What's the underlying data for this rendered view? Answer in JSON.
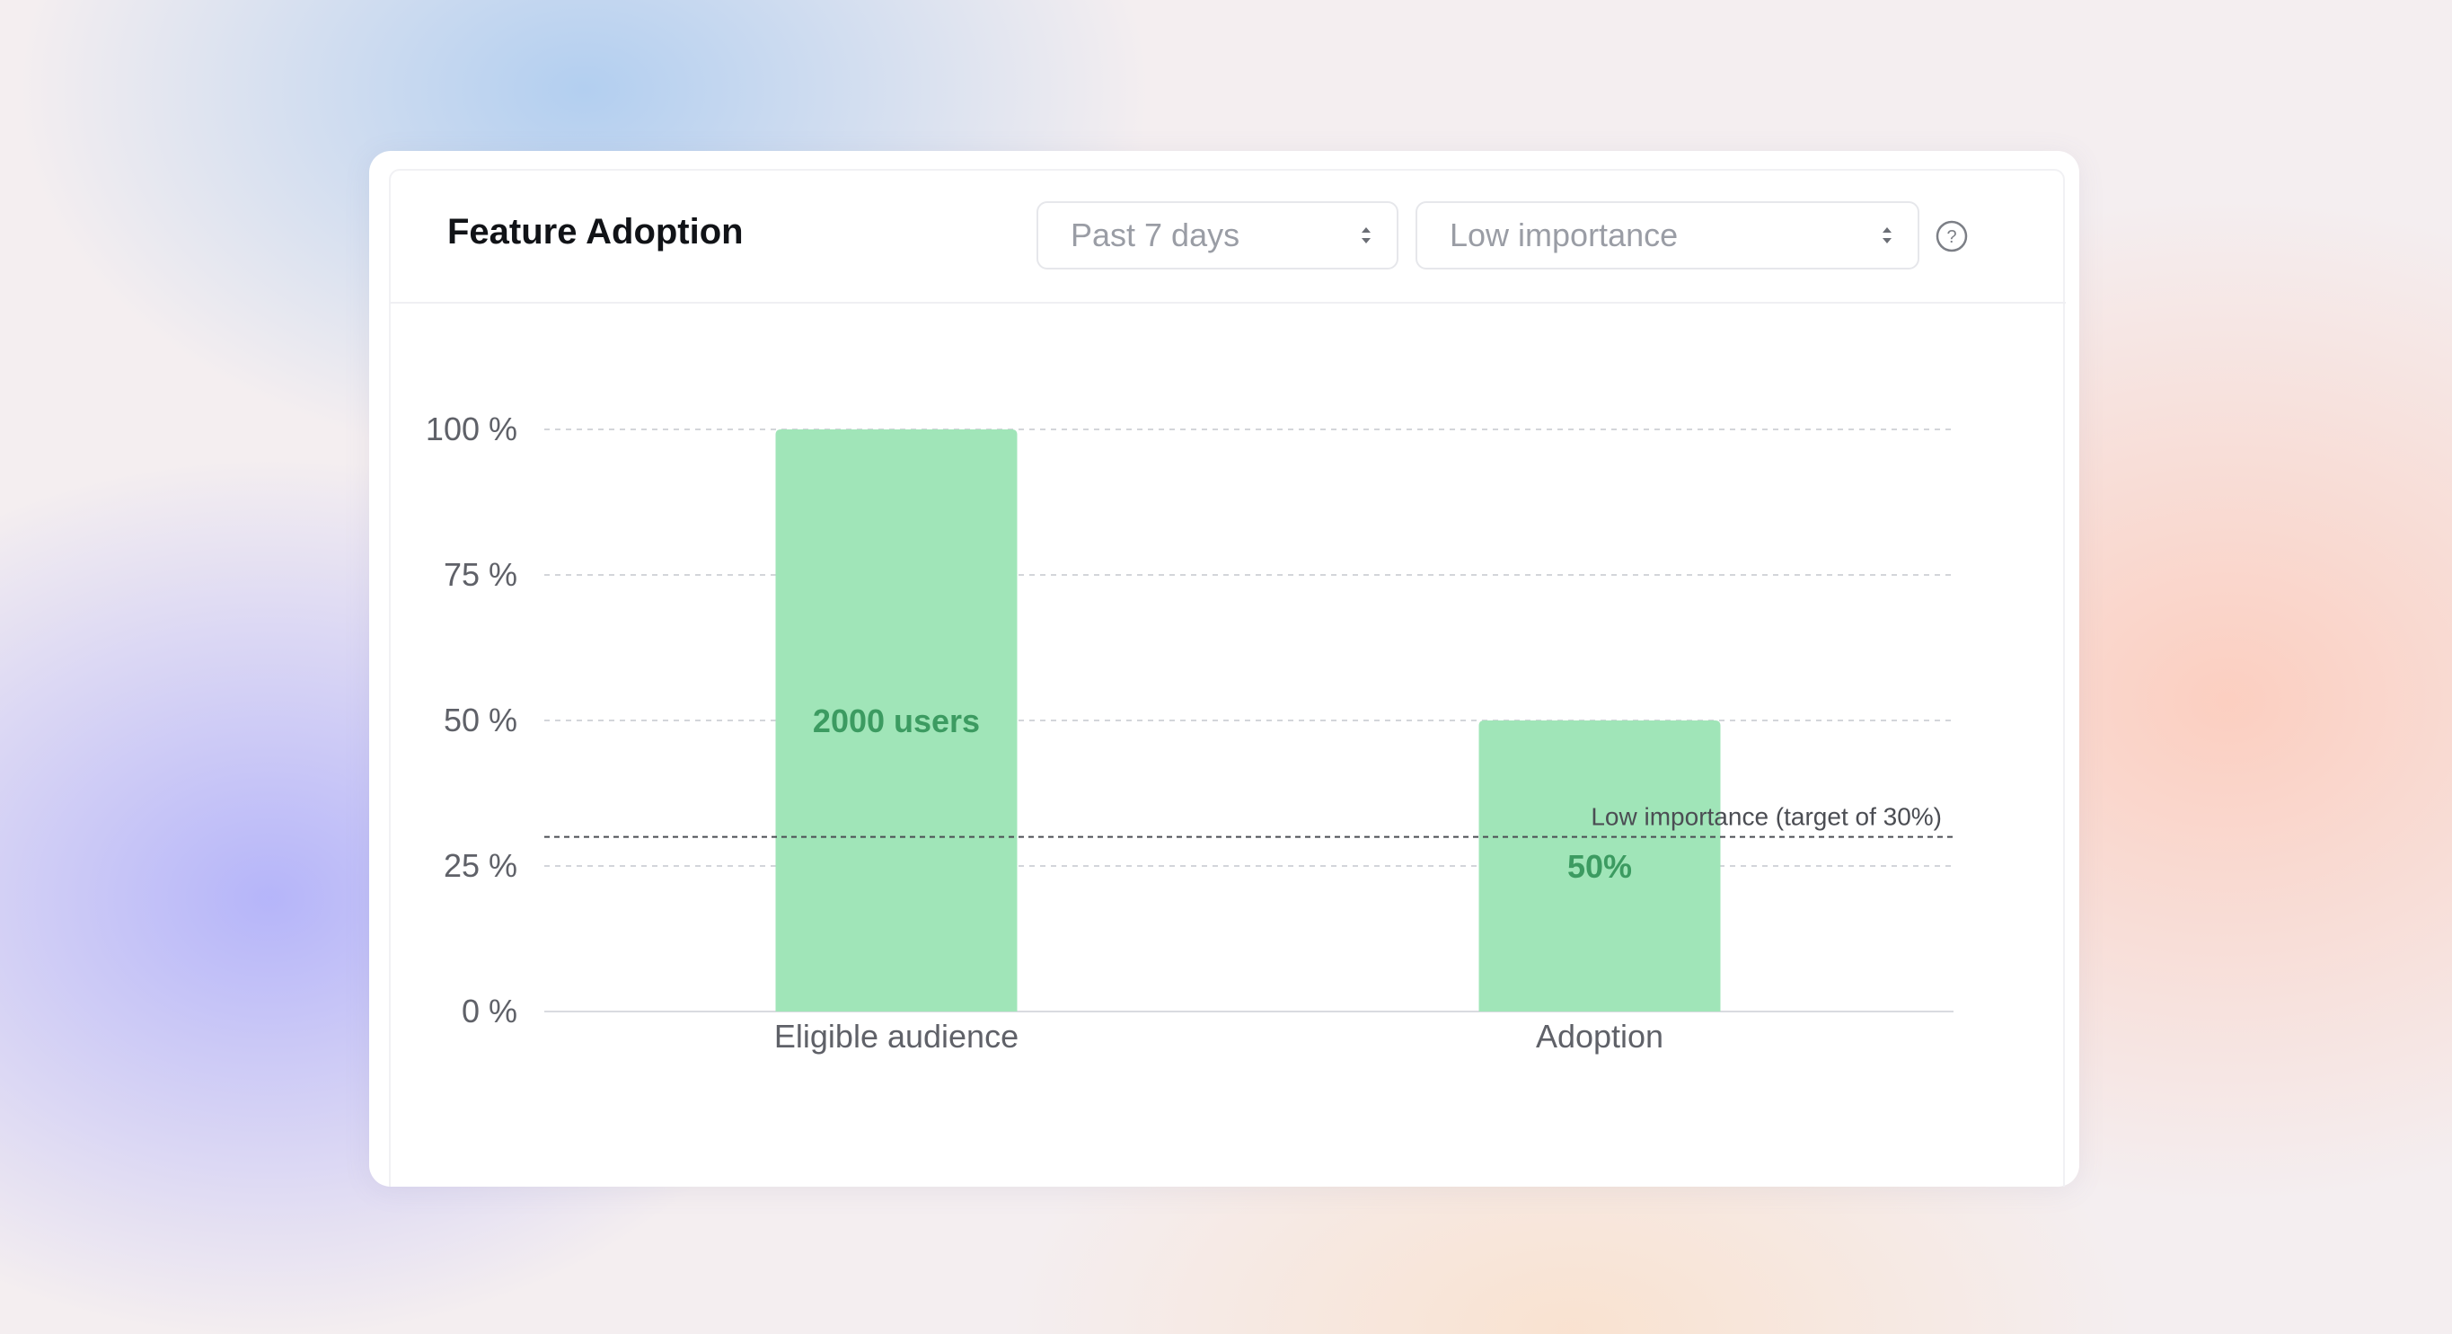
{
  "widget": {
    "title": "Feature Adoption",
    "time_range": {
      "selected": "Past 7 days"
    },
    "importance": {
      "selected": "Low importance"
    },
    "help_icon": "question-circle-icon"
  },
  "chart_data": {
    "type": "bar",
    "categories": [
      "Eligible audience",
      "Adoption"
    ],
    "values": [
      100,
      50
    ],
    "data_labels": [
      "2000 users",
      "50%"
    ],
    "ylim": [
      0,
      100
    ],
    "y_ticks": [
      0,
      25,
      50,
      75,
      100
    ],
    "y_tick_labels": [
      "0 %",
      "25 %",
      "50 %",
      "75 %",
      "100 %"
    ],
    "grid": true,
    "target_line": {
      "value": 30,
      "label": "Low importance (target of 30%)"
    },
    "colors": {
      "bar": "#a0e5b8",
      "bar_label": "#3c9b61",
      "grid": "#d3d5da",
      "target": "#4b4d53"
    }
  }
}
